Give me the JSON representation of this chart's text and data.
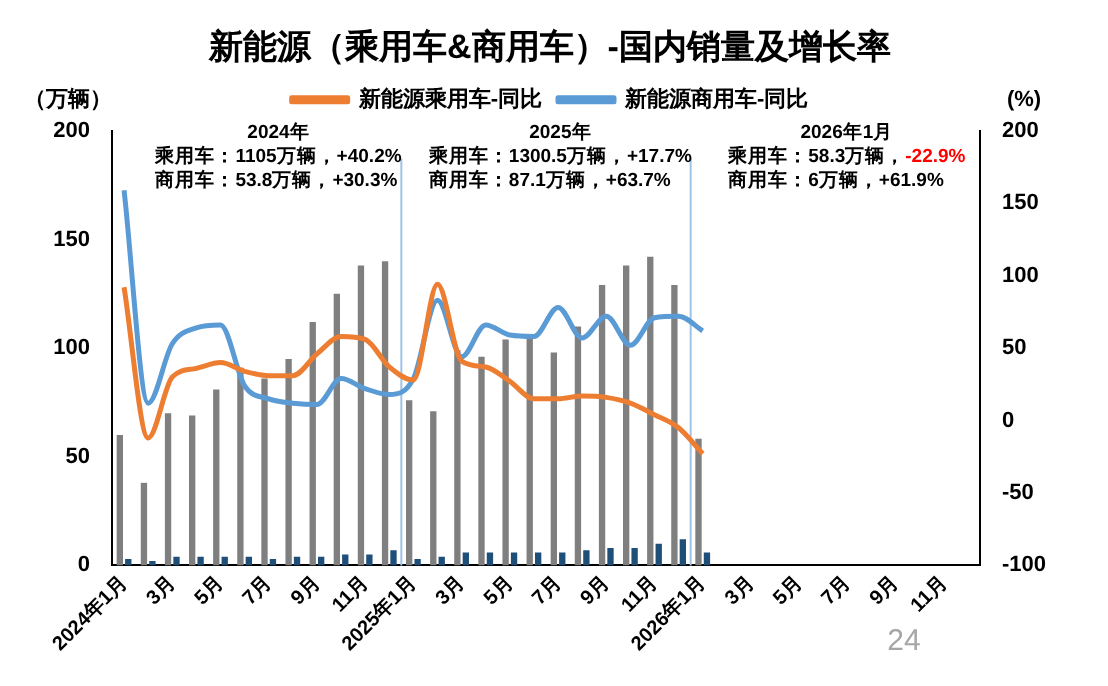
{
  "chart_data": {
    "type": "bar",
    "title": "新能源（乘用车&商用车）-国内销量及增长率",
    "ylabel": "（万辆）",
    "y2label": "(%)",
    "categories": [
      "2024年1月",
      null,
      "3月",
      null,
      "5月",
      null,
      "7月",
      null,
      "9月",
      null,
      "11月",
      null,
      "2025年1月",
      null,
      "3月",
      null,
      "5月",
      null,
      "7月",
      null,
      "9月",
      null,
      "11月",
      null,
      "2026年1月",
      null,
      "3月",
      null,
      "5月",
      null,
      "7月",
      null,
      "9月",
      null,
      "11月",
      null
    ],
    "series": [
      {
        "color": "#7f7f7f",
        "values": [
          60,
          38,
          70,
          69,
          81,
          91,
          86,
          95,
          112,
          125,
          138,
          140,
          76,
          71,
          99,
          96,
          104,
          105,
          98,
          110,
          129,
          138,
          142,
          129,
          58.3,
          null,
          null,
          null,
          null,
          null,
          null,
          null,
          null,
          null,
          null,
          null
        ]
      },
      {
        "color": "#1f4e79",
        "values": [
          3,
          2,
          4,
          4,
          4,
          4,
          3,
          4,
          4,
          5,
          5,
          7,
          3,
          4,
          6,
          6,
          6,
          6,
          6,
          7,
          8,
          8,
          10,
          12,
          6,
          null,
          null,
          null,
          null,
          null,
          null,
          null,
          null,
          null,
          null,
          null
        ]
      },
      {
        "type": "line",
        "name": "新能源乘用车-同比",
        "color": "#ed7d31",
        "axis": "y2",
        "values": [
          92,
          -12,
          30,
          36,
          40,
          34,
          31,
          31,
          46,
          58,
          56,
          37,
          28,
          94,
          41,
          37,
          27,
          15,
          15,
          17,
          16,
          12,
          4,
          -5,
          -22.9,
          null,
          null,
          null,
          null,
          null,
          null,
          null,
          null,
          null,
          null,
          null
        ]
      },
      {
        "type": "line",
        "name": "新能源商用车-同比",
        "color": "#5b9bd5",
        "axis": "y2",
        "values": [
          159,
          12,
          53,
          64,
          66,
          24,
          15,
          12,
          11,
          29,
          22,
          18,
          29,
          83,
          44,
          66,
          59,
          58,
          78,
          57,
          72,
          52,
          71,
          72,
          61.9,
          null,
          null,
          null,
          null,
          null,
          null,
          null,
          null,
          null,
          null,
          null
        ]
      }
    ],
    "ylim": [
      0,
      200
    ],
    "yticks": [
      0,
      50,
      100,
      150,
      200
    ],
    "y2lim": [
      -100,
      200
    ],
    "y2ticks": [
      -100,
      -50,
      0,
      50,
      100,
      150,
      200
    ],
    "annotations": [
      "2024年",
      "乘用车：1105万辆，+40.2%",
      "商用车：53.8万辆，+30.3%",
      "2025年",
      "乘用车：1300.5万辆，+17.7%",
      "商用车：87.1万辆，+63.7%",
      "2026年1月",
      "乘用车：58.3万辆，-22.9%",
      "商用车：6万辆，+61.9%",
      "24"
    ],
    "grid": false,
    "legend": "top",
    "marker": "none",
    "line_style": "solid"
  }
}
